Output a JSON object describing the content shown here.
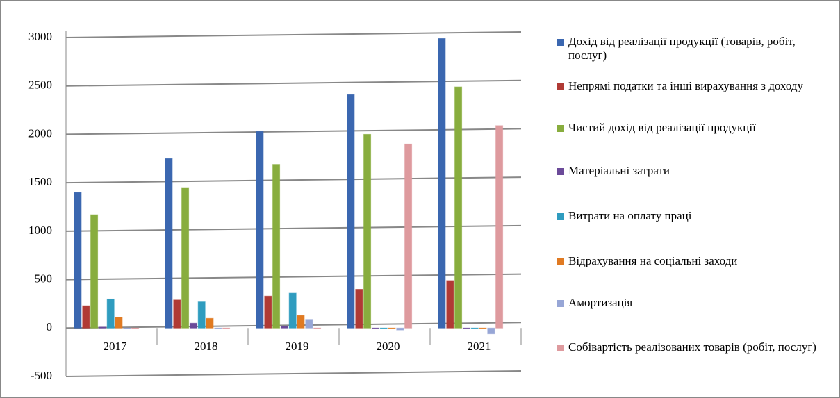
{
  "chart_data": {
    "type": "bar",
    "categories": [
      "2017",
      "2018",
      "2019",
      "2020",
      "2021"
    ],
    "series": [
      {
        "name": "Дохід від реалізації продукції (товарів, робіт, послуг)",
        "color": "#3b67b0",
        "values": [
          1400,
          1750,
          2030,
          2410,
          2990
        ]
      },
      {
        "name": "Непрямі податки та інші вирахування з доходу",
        "color": "#b03a35",
        "values": [
          230,
          290,
          330,
          400,
          490
        ]
      },
      {
        "name": "Чистий дохід від реалізації продукції",
        "color": "#88ad3e",
        "values": [
          1170,
          1450,
          1690,
          2000,
          2490
        ]
      },
      {
        "name": "Матеріальні затрати",
        "color": "#6b4a99",
        "values": [
          10,
          50,
          20,
          0,
          0
        ]
      },
      {
        "name": "Витрати на оплату праці",
        "color": "#2f9cbf",
        "values": [
          300,
          270,
          360,
          0,
          0
        ]
      },
      {
        "name": "Відрахування на соціальні заходи",
        "color": "#e07a22",
        "values": [
          110,
          100,
          130,
          0,
          0
        ]
      },
      {
        "name": "Амортизація",
        "color": "#97a6d6",
        "values": [
          0,
          0,
          90,
          -20,
          -60
        ]
      },
      {
        "name": "Собівартість реалізованих товарів (робіт, послуг)",
        "color": "#de9a9e",
        "values": [
          0,
          0,
          0,
          1900,
          2090
        ]
      }
    ],
    "ylim": [
      -500,
      3000
    ],
    "yticks": [
      -500,
      0,
      500,
      1000,
      1500,
      2000,
      2500,
      3000
    ],
    "grid": true
  }
}
